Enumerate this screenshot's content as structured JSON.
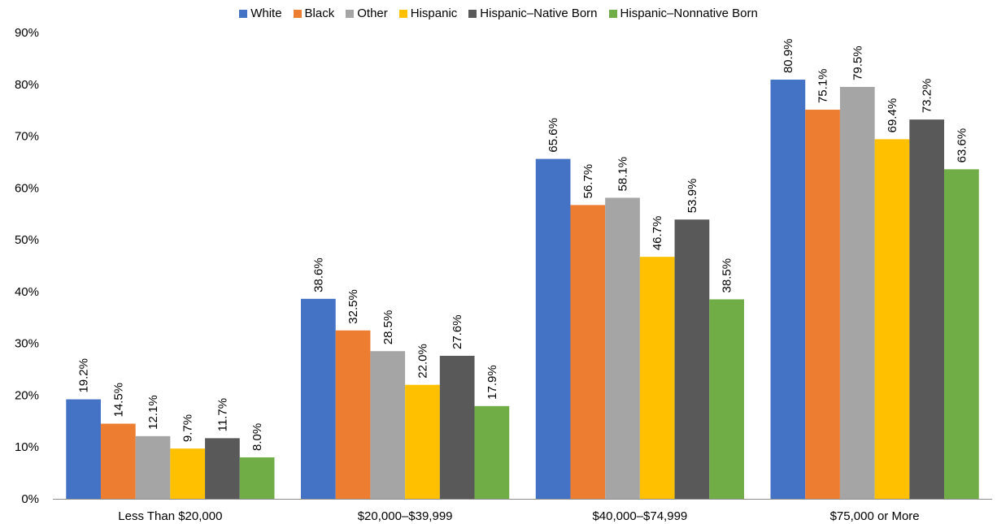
{
  "chart_data": {
    "type": "bar",
    "categories": [
      "Less Than $20,000",
      "$20,000–$39,999",
      "$40,000–$74,999",
      "$75,000 or More"
    ],
    "series": [
      {
        "name": "White",
        "color": "#4472C4",
        "values": [
          19.2,
          38.6,
          65.6,
          80.9
        ]
      },
      {
        "name": "Black",
        "color": "#ED7D31",
        "values": [
          14.5,
          32.5,
          56.7,
          75.1
        ]
      },
      {
        "name": "Other",
        "color": "#A5A5A5",
        "values": [
          12.1,
          28.5,
          58.1,
          79.5
        ]
      },
      {
        "name": "Hispanic",
        "color": "#FFC000",
        "values": [
          9.7,
          22.0,
          46.7,
          69.4
        ]
      },
      {
        "name": "Hispanic–Native Born",
        "color": "#595959",
        "values": [
          11.7,
          27.6,
          53.9,
          73.2
        ]
      },
      {
        "name": "Hispanic–Nonnative Born",
        "color": "#70AD47",
        "values": [
          8.0,
          17.9,
          38.5,
          63.6
        ]
      }
    ],
    "data_labels": [
      [
        "19.2%",
        "38.6%",
        "65.6%",
        "80.9%"
      ],
      [
        "14.5%",
        "32.5%",
        "56.7%",
        "75.1%"
      ],
      [
        "12.1%",
        "28.5%",
        "58.1%",
        "79.5%"
      ],
      [
        "9.7%",
        "22.0%",
        "46.7%",
        "69.4%"
      ],
      [
        "11.7%",
        "27.6%",
        "53.9%",
        "73.2%"
      ],
      [
        "8.0%",
        "17.9%",
        "38.5%",
        "63.6%"
      ]
    ],
    "yticks": [
      "0%",
      "10%",
      "20%",
      "30%",
      "40%",
      "50%",
      "60%",
      "70%",
      "80%",
      "90%"
    ],
    "ylim": [
      0,
      90
    ],
    "grid": false,
    "legend": "top-center",
    "title": "",
    "xlabel": "",
    "ylabel": ""
  }
}
